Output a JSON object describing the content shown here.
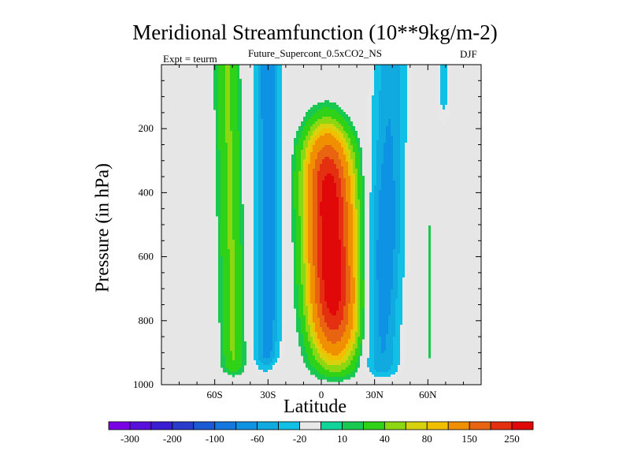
{
  "chart_data": {
    "type": "contour",
    "title": "Meridional Streamfunction (10**9kg/m-2)",
    "subtitle": "Future_Supercont_0.5xCO2_NS",
    "left_note": "Expt = teurm",
    "right_note": "DJF",
    "xlabel": "Latitude",
    "ylabel": "Pressure (in hPa)",
    "xlim": [
      -90,
      90
    ],
    "ylim": [
      1000,
      0
    ],
    "x_ticks": [
      {
        "value": -60,
        "label": "60S"
      },
      {
        "value": -30,
        "label": "30S"
      },
      {
        "value": 0,
        "label": "0"
      },
      {
        "value": 30,
        "label": "30N"
      },
      {
        "value": 60,
        "label": "60N"
      }
    ],
    "y_ticks": [
      {
        "value": 200,
        "label": "200"
      },
      {
        "value": 400,
        "label": "400"
      },
      {
        "value": 600,
        "label": "600"
      },
      {
        "value": 800,
        "label": "800"
      },
      {
        "value": 1000,
        "label": "1000"
      }
    ],
    "background_color": "#e6e6e6",
    "contour_levels": [
      -300,
      -250,
      -200,
      -150,
      -100,
      -80,
      -60,
      -40,
      -20,
      -10,
      10,
      20,
      40,
      60,
      80,
      100,
      150,
      200,
      250,
      300
    ],
    "colorbar_labels": [
      "-300",
      "-200",
      "-100",
      "-60",
      "-20",
      "10",
      "40",
      "80",
      "150",
      "250"
    ],
    "colorbar_colors": [
      "#7a00e6",
      "#5a10dc",
      "#3a1ed4",
      "#2a3ccc",
      "#1a5ad4",
      "#1478de",
      "#0e92e4",
      "#10aae0",
      "#12c0e6",
      "#e8e8e8",
      "#10d49a",
      "#18c850",
      "#30d218",
      "#8cd612",
      "#d8d20e",
      "#f0c000",
      "#f09000",
      "#e86410",
      "#e43010",
      "#e00808"
    ],
    "features": [
      {
        "name": "central positive cell",
        "lat_range": [
          -18,
          25
        ],
        "p_range": [
          100,
          980
        ],
        "peak": 250
      },
      {
        "name": "SH subtropical negative cell",
        "lat_range": [
          -40,
          -20
        ],
        "p_range": [
          0,
          950
        ],
        "peak": -60
      },
      {
        "name": "NH subtropical negative cell",
        "lat_range": [
          28,
          55
        ],
        "p_range": [
          0,
          970
        ],
        "peak": -60
      },
      {
        "name": "SH mid-latitude positive band",
        "lat_range": [
          -65,
          -48
        ],
        "p_range": [
          0,
          960
        ],
        "peak": 40
      },
      {
        "name": "NH polar negative band",
        "lat_range": [
          62,
          75
        ],
        "p_range": [
          0,
          150
        ],
        "peak": -20
      },
      {
        "name": "NH high-latitude positive sliver",
        "lat_range": [
          58,
          64
        ],
        "p_range": [
          480,
          930
        ],
        "peak": 10
      }
    ]
  }
}
